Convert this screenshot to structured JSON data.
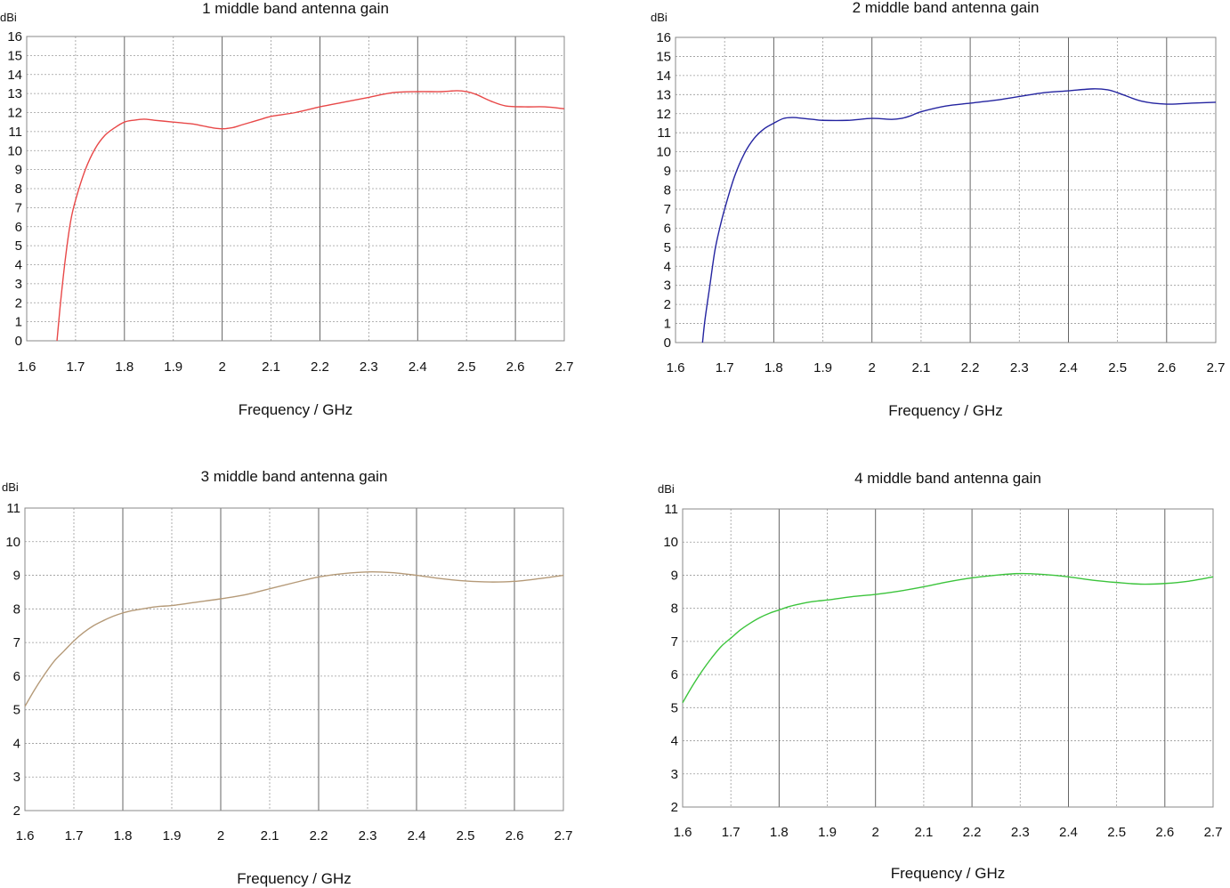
{
  "chart_data": [
    {
      "type": "line",
      "title": "1 middle band antenna gain",
      "xlabel": "Frequency / GHz",
      "ylabel": "dBi",
      "xlim": [
        1.6,
        2.7
      ],
      "ylim": [
        0,
        16
      ],
      "x_ticks": [
        "1.6",
        "1.7",
        "1.8",
        "1.9",
        "2",
        "2.1",
        "2.2",
        "2.3",
        "2.4",
        "2.5",
        "2.6",
        "2.7"
      ],
      "y_ticks": [
        "0",
        "1",
        "2",
        "3",
        "4",
        "5",
        "6",
        "7",
        "8",
        "9",
        "10",
        "11",
        "12",
        "13",
        "14",
        "15",
        "16"
      ],
      "grid": true,
      "color": "#e84848",
      "series": [
        {
          "x": [
            1.662,
            1.67,
            1.68,
            1.69,
            1.7,
            1.72,
            1.74,
            1.76,
            1.78,
            1.8,
            1.82,
            1.84,
            1.86,
            1.88,
            1.9,
            1.92,
            1.94,
            1.96,
            1.98,
            2.0,
            2.02,
            2.04,
            2.06,
            2.08,
            2.1,
            2.15,
            2.2,
            2.25,
            2.3,
            2.35,
            2.4,
            2.45,
            2.48,
            2.5,
            2.52,
            2.55,
            2.58,
            2.62,
            2.66,
            2.7
          ],
          "y": [
            0,
            2.2,
            4.5,
            6.3,
            7.4,
            9.0,
            10.1,
            10.8,
            11.2,
            11.5,
            11.6,
            11.65,
            11.6,
            11.55,
            11.5,
            11.45,
            11.4,
            11.3,
            11.2,
            11.15,
            11.2,
            11.35,
            11.5,
            11.65,
            11.8,
            12.0,
            12.3,
            12.55,
            12.8,
            13.05,
            13.1,
            13.1,
            13.15,
            13.1,
            12.95,
            12.6,
            12.35,
            12.3,
            12.3,
            12.2
          ]
        }
      ]
    },
    {
      "type": "line",
      "title": "2 middle band antenna gain",
      "xlabel": "Frequency / GHz",
      "ylabel": "dBi",
      "xlim": [
        1.6,
        2.7
      ],
      "ylim": [
        0,
        16
      ],
      "x_ticks": [
        "1.6",
        "1.7",
        "1.8",
        "1.9",
        "2",
        "2.1",
        "2.2",
        "2.3",
        "2.4",
        "2.5",
        "2.6",
        "2.7"
      ],
      "y_ticks": [
        "0",
        "1",
        "2",
        "3",
        "4",
        "5",
        "6",
        "7",
        "8",
        "9",
        "10",
        "11",
        "12",
        "13",
        "14",
        "15",
        "16"
      ],
      "grid": true,
      "color": "#2424a0",
      "series": [
        {
          "x": [
            1.655,
            1.66,
            1.67,
            1.68,
            1.69,
            1.7,
            1.72,
            1.74,
            1.76,
            1.78,
            1.8,
            1.82,
            1.84,
            1.86,
            1.88,
            1.9,
            1.95,
            2.0,
            2.04,
            2.06,
            2.08,
            2.1,
            2.15,
            2.2,
            2.25,
            2.3,
            2.35,
            2.4,
            2.45,
            2.48,
            2.5,
            2.55,
            2.6,
            2.65,
            2.7
          ],
          "y": [
            0,
            1.2,
            3.0,
            4.8,
            6.0,
            7.0,
            8.7,
            9.9,
            10.7,
            11.2,
            11.5,
            11.75,
            11.8,
            11.75,
            11.7,
            11.65,
            11.65,
            11.75,
            11.7,
            11.75,
            11.9,
            12.1,
            12.4,
            12.55,
            12.7,
            12.9,
            13.1,
            13.2,
            13.3,
            13.25,
            13.1,
            12.65,
            12.5,
            12.55,
            12.6
          ]
        }
      ]
    },
    {
      "type": "line",
      "title": "3 middle band antenna gain",
      "xlabel": "Frequency / GHz",
      "ylabel": "dBi",
      "xlim": [
        1.6,
        2.7
      ],
      "ylim": [
        2,
        11
      ],
      "x_ticks": [
        "1.6",
        "1.7",
        "1.8",
        "1.9",
        "2",
        "2.1",
        "2.2",
        "2.3",
        "2.4",
        "2.5",
        "2.6",
        "2.7"
      ],
      "y_ticks": [
        "2",
        "3",
        "4",
        "5",
        "6",
        "7",
        "8",
        "9",
        "10",
        "11"
      ],
      "grid": true,
      "color": "#b59a78",
      "series": [
        {
          "x": [
            1.6,
            1.62,
            1.64,
            1.66,
            1.68,
            1.7,
            1.72,
            1.74,
            1.76,
            1.78,
            1.8,
            1.82,
            1.84,
            1.86,
            1.88,
            1.9,
            1.95,
            2.0,
            2.05,
            2.1,
            2.15,
            2.2,
            2.25,
            2.3,
            2.35,
            2.4,
            2.45,
            2.5,
            2.55,
            2.6,
            2.65,
            2.7
          ],
          "y": [
            5.1,
            5.6,
            6.05,
            6.45,
            6.75,
            7.05,
            7.3,
            7.5,
            7.65,
            7.78,
            7.88,
            7.95,
            8.0,
            8.05,
            8.08,
            8.1,
            8.2,
            8.3,
            8.42,
            8.6,
            8.78,
            8.95,
            9.05,
            9.1,
            9.08,
            9.0,
            8.9,
            8.83,
            8.8,
            8.82,
            8.9,
            9.0
          ]
        }
      ]
    },
    {
      "type": "line",
      "title": "4 middle band antenna gain",
      "xlabel": "Frequency / GHz",
      "ylabel": "dBi",
      "xlim": [
        1.6,
        2.7
      ],
      "ylim": [
        2,
        11
      ],
      "x_ticks": [
        "1.6",
        "1.7",
        "1.8",
        "1.9",
        "2",
        "2.1",
        "2.2",
        "2.3",
        "2.4",
        "2.5",
        "2.6",
        "2.7"
      ],
      "y_ticks": [
        "2",
        "3",
        "4",
        "5",
        "6",
        "7",
        "8",
        "9",
        "10",
        "11"
      ],
      "grid": true,
      "color": "#3cc43c",
      "series": [
        {
          "x": [
            1.6,
            1.62,
            1.64,
            1.66,
            1.68,
            1.7,
            1.72,
            1.74,
            1.76,
            1.78,
            1.8,
            1.82,
            1.84,
            1.86,
            1.88,
            1.9,
            1.95,
            2.0,
            2.05,
            2.1,
            2.15,
            2.2,
            2.25,
            2.3,
            2.35,
            2.4,
            2.45,
            2.5,
            2.55,
            2.6,
            2.65,
            2.7
          ],
          "y": [
            5.15,
            5.65,
            6.1,
            6.5,
            6.85,
            7.1,
            7.35,
            7.55,
            7.72,
            7.85,
            7.95,
            8.05,
            8.12,
            8.18,
            8.22,
            8.25,
            8.35,
            8.42,
            8.52,
            8.65,
            8.8,
            8.92,
            9.0,
            9.05,
            9.02,
            8.95,
            8.85,
            8.78,
            8.73,
            8.75,
            8.82,
            8.95
          ]
        }
      ]
    }
  ]
}
